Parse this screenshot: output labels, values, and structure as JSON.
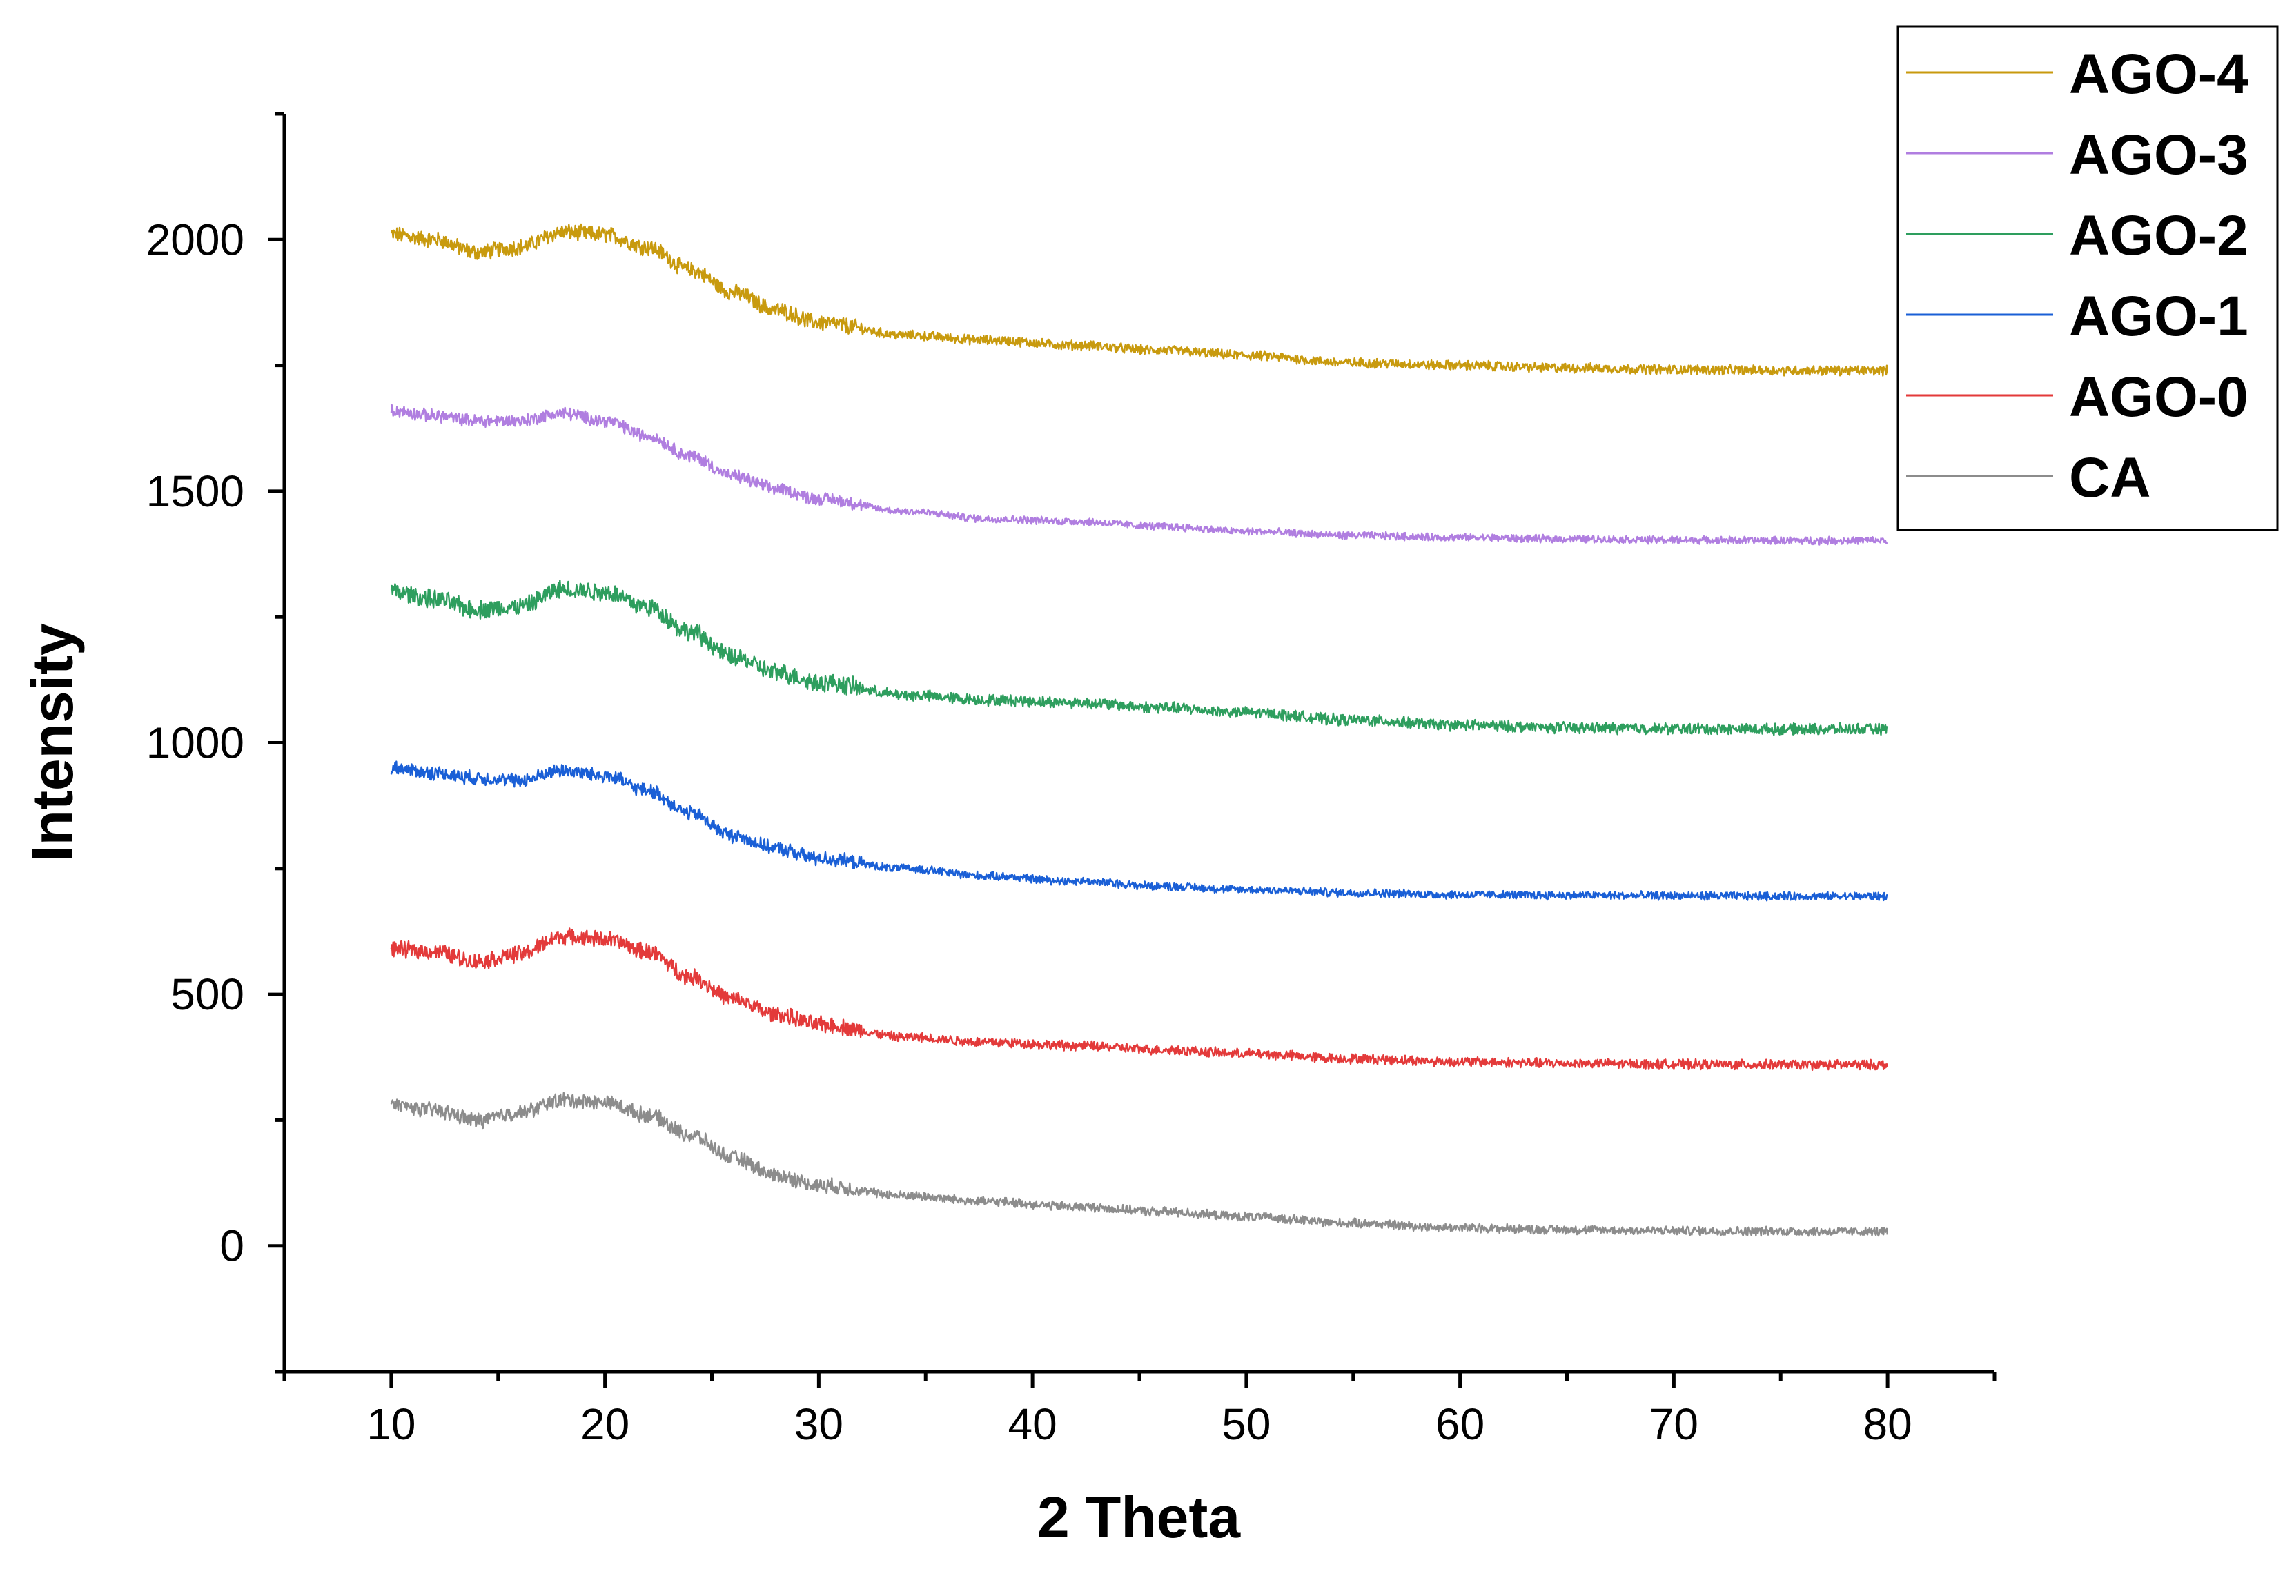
{
  "chart_data": {
    "type": "line",
    "title": "",
    "xlabel": "2 Theta",
    "ylabel": "Intensity",
    "xlim": [
      5,
      85
    ],
    "ylim": [
      -250,
      2250
    ],
    "x_ticks": [
      10,
      20,
      30,
      40,
      50,
      60,
      70,
      80
    ],
    "x_tick_labels": [
      "10",
      "20",
      "30",
      "40",
      "50",
      "60",
      "70",
      "80"
    ],
    "y_ticks": [
      0,
      500,
      1000,
      1500,
      2000
    ],
    "y_tick_labels": [
      "0",
      "500",
      "1000",
      "1500",
      "2000"
    ],
    "grid": false,
    "legend_position": "top-right",
    "series": [
      {
        "name": "AGO-4",
        "color": "#c89a0e",
        "noise": 14,
        "x": [
          10,
          12,
          14,
          16,
          18,
          20,
          22,
          24,
          26,
          28,
          30,
          34,
          38,
          42,
          46,
          50,
          55,
          60,
          65,
          70,
          75,
          80
        ],
        "values": [
          2010,
          2000,
          1975,
          1985,
          2015,
          2010,
          1985,
          1940,
          1895,
          1860,
          1835,
          1810,
          1800,
          1790,
          1780,
          1770,
          1755,
          1750,
          1745,
          1742,
          1740,
          1740
        ]
      },
      {
        "name": "AGO-3",
        "color": "#b07ee0",
        "noise": 11,
        "x": [
          10,
          12,
          14,
          16,
          18,
          20,
          22,
          24,
          26,
          28,
          30,
          34,
          38,
          42,
          46,
          50,
          55,
          60,
          65,
          70,
          75,
          80
        ],
        "values": [
          1660,
          1650,
          1640,
          1640,
          1655,
          1640,
          1610,
          1570,
          1530,
          1505,
          1485,
          1460,
          1445,
          1440,
          1430,
          1420,
          1412,
          1408,
          1405,
          1403,
          1402,
          1402
        ]
      },
      {
        "name": "AGO-2",
        "color": "#2e9e5e",
        "noise": 16,
        "x": [
          10,
          12,
          14,
          16,
          18,
          20,
          22,
          24,
          26,
          28,
          30,
          34,
          38,
          42,
          46,
          50,
          55,
          60,
          65,
          70,
          75,
          80
        ],
        "values": [
          1300,
          1285,
          1265,
          1270,
          1305,
          1300,
          1270,
          1220,
          1170,
          1140,
          1120,
          1095,
          1085,
          1080,
          1070,
          1060,
          1045,
          1035,
          1030,
          1028,
          1027,
          1027
        ]
      },
      {
        "name": "AGO-1",
        "color": "#1a5fd6",
        "noise": 12,
        "x": [
          10,
          12,
          14,
          16,
          18,
          20,
          22,
          24,
          26,
          28,
          30,
          34,
          38,
          42,
          46,
          50,
          55,
          60,
          65,
          70,
          75,
          80
        ],
        "values": [
          950,
          940,
          930,
          925,
          945,
          935,
          905,
          860,
          815,
          790,
          770,
          750,
          735,
          725,
          715,
          708,
          702,
          698,
          697,
          696,
          695,
          695
        ]
      },
      {
        "name": "AGO-0",
        "color": "#e33a3a",
        "noise": 14,
        "x": [
          10,
          12,
          14,
          16,
          18,
          20,
          22,
          24,
          26,
          28,
          30,
          34,
          38,
          42,
          46,
          50,
          55,
          60,
          65,
          70,
          75,
          80
        ],
        "values": [
          590,
          585,
          565,
          580,
          615,
          610,
          585,
          535,
          490,
          460,
          440,
          415,
          405,
          398,
          390,
          382,
          372,
          366,
          363,
          361,
          360,
          360
        ]
      },
      {
        "name": "CA",
        "color": "#8c8c8c",
        "noise": 13,
        "x": [
          10,
          12,
          14,
          16,
          18,
          20,
          22,
          24,
          26,
          28,
          30,
          34,
          38,
          42,
          46,
          50,
          55,
          60,
          65,
          70,
          75,
          80
        ],
        "values": [
          280,
          270,
          250,
          265,
          290,
          285,
          260,
          220,
          175,
          140,
          120,
          100,
          88,
          78,
          68,
          58,
          45,
          36,
          32,
          30,
          29,
          28
        ]
      }
    ]
  }
}
